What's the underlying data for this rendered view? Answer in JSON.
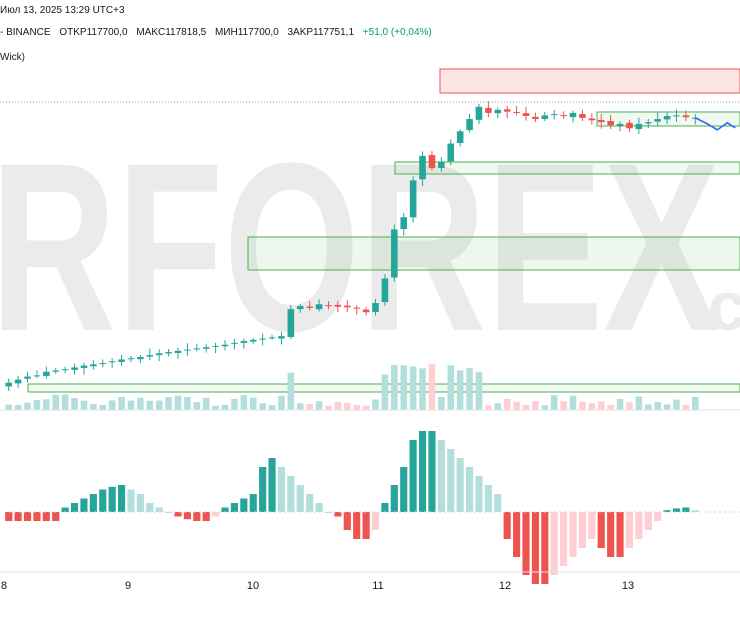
{
  "header": {
    "date_time": "Июл 13, 2025 13:29 UTC+3",
    "source": "- BINANCE",
    "open": "OTKP117700,0",
    "high": "MAKC117818,5",
    "low": "MИH117700,0",
    "close": "3AKP117751,1",
    "change": "+51,0 (+0,04%)",
    "indicator": "Wick)"
  },
  "watermark": {
    "text": "RFOREX",
    "suffix": ".co",
    "color": "#e8e8e8",
    "accent": "#f8d8d8"
  },
  "colors": {
    "up": "#26a69a",
    "down": "#ef5350",
    "up_light": "#b2dfdb",
    "down_light": "#ffcdd2",
    "zone_green": "#4caf50",
    "zone_red": "#ef5350",
    "forecast": "#2962ff"
  },
  "chart_data": [
    {
      "type": "candlestick",
      "x_tick_labels": [
        "8",
        "9",
        "10",
        "11",
        "12",
        "13"
      ],
      "price_close_series": [
        116900,
        116950,
        117000,
        117020,
        117080,
        117100,
        117120,
        117150,
        117180,
        117200,
        117220,
        117250,
        117280,
        117300,
        117320,
        117350,
        117380,
        117400,
        117420,
        117440,
        117460,
        117480,
        117500,
        117520,
        117550,
        117580,
        117600,
        117620,
        117640,
        117660,
        118100,
        118150,
        118120,
        118180,
        118160,
        118140,
        118130,
        118110,
        118050,
        118200,
        118600,
        119400,
        119600,
        120200,
        120600,
        120400,
        120500,
        120800,
        121000,
        121200,
        121400,
        121300,
        121350,
        121320,
        121300,
        121250,
        121200,
        121260,
        121280,
        121250,
        121300,
        121220,
        121180,
        121150,
        121100,
        121120,
        121050,
        121120,
        121150,
        121200,
        121250,
        121260,
        121230,
        121220
      ],
      "forecast_line": "after last candle"
    },
    {
      "type": "histogram",
      "name": "volume"
    },
    {
      "type": "histogram",
      "name": "oscillator",
      "values": [
        -1,
        -1,
        -1,
        -1,
        -1,
        -1,
        0.5,
        1,
        1.5,
        2,
        2.5,
        2.8,
        3,
        2.5,
        2,
        1,
        0.5,
        0,
        -0.5,
        -0.8,
        -1,
        -1,
        -0.5,
        0.5,
        1,
        1.5,
        2,
        5,
        6,
        5,
        4,
        3,
        2,
        1,
        0,
        -0.5,
        -2,
        -3,
        -3,
        -2,
        1,
        3,
        5,
        8,
        9,
        9,
        8,
        7,
        6,
        5,
        4,
        3,
        2,
        -3,
        -5,
        -7,
        -8,
        -8,
        -7,
        -6,
        -5,
        -4,
        -3,
        -4,
        -5,
        -5,
        -4,
        -3,
        -2,
        -1,
        0.2,
        0.4,
        0.5,
        0.2
      ]
    }
  ]
}
